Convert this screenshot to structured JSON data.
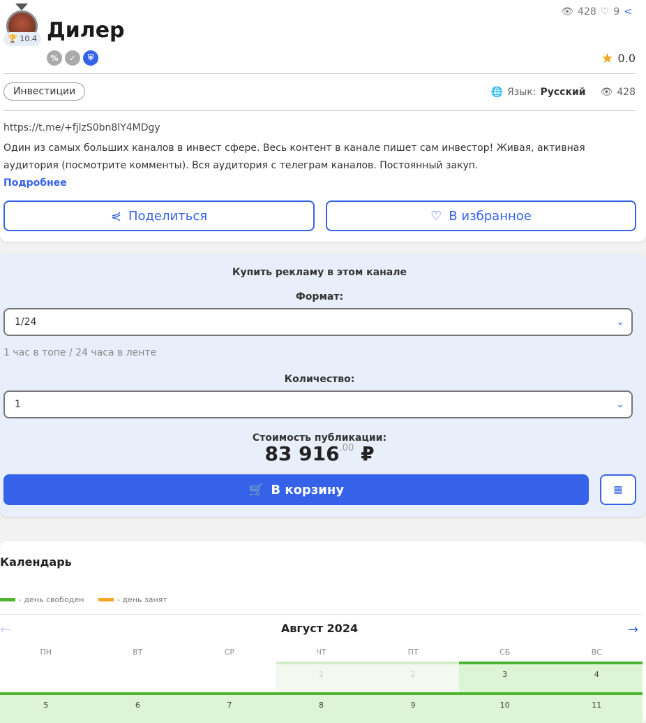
{
  "channel": {
    "title": "Дилер",
    "rating": "10.4",
    "views": "428",
    "likes": "9",
    "stars": "0.0",
    "category": "Инвестиции",
    "language_label": "Язык:",
    "language": "Русский",
    "views2": "428",
    "link": "https://t.me/+fjlzS0bn8lY4MDgy",
    "description": "Один из самых больших каналов в инвест сфере. Весь контент в канале пишет сам инвестор! Живая, активная аудитория (посмотрите комменты). Вся аудитория с телеграм каналов. Постоянный закуп.",
    "more": "Подробнее",
    "share": "Поделиться",
    "favorite": "В избранное"
  },
  "buy": {
    "title": "Купить рекламу в этом канале",
    "format_label": "Формат:",
    "format_value": "1/24",
    "format_hint": "1 час в топе / 24 часа в ленте",
    "qty_label": "Количество:",
    "qty_value": "1",
    "cost_label": "Стоимость публикации:",
    "price": "83 916",
    "price_cents": ".00",
    "currency": "₽",
    "cart": "В корзину"
  },
  "calendar": {
    "title": "Календарь",
    "legend_free": "- день свободен",
    "legend_busy": "- день занят",
    "month": "Август 2024",
    "weekdays": [
      "ПН",
      "ВТ",
      "СР",
      "ЧТ",
      "ПТ",
      "СБ",
      "ВС"
    ],
    "days": [
      {
        "d": "",
        "s": "empty"
      },
      {
        "d": "",
        "s": "empty"
      },
      {
        "d": "",
        "s": "empty"
      },
      {
        "d": "1",
        "s": "past"
      },
      {
        "d": "2",
        "s": "past"
      },
      {
        "d": "3",
        "s": "free"
      },
      {
        "d": "4",
        "s": "free"
      },
      {
        "d": "5",
        "s": "free"
      },
      {
        "d": "6",
        "s": "free"
      },
      {
        "d": "7",
        "s": "free"
      },
      {
        "d": "8",
        "s": "free"
      },
      {
        "d": "9",
        "s": "free"
      },
      {
        "d": "10",
        "s": "free"
      },
      {
        "d": "11",
        "s": "free"
      }
    ]
  },
  "colors": {
    "accent": "#3562e8",
    "free": "#4db52f",
    "busy": "#f5a623"
  }
}
